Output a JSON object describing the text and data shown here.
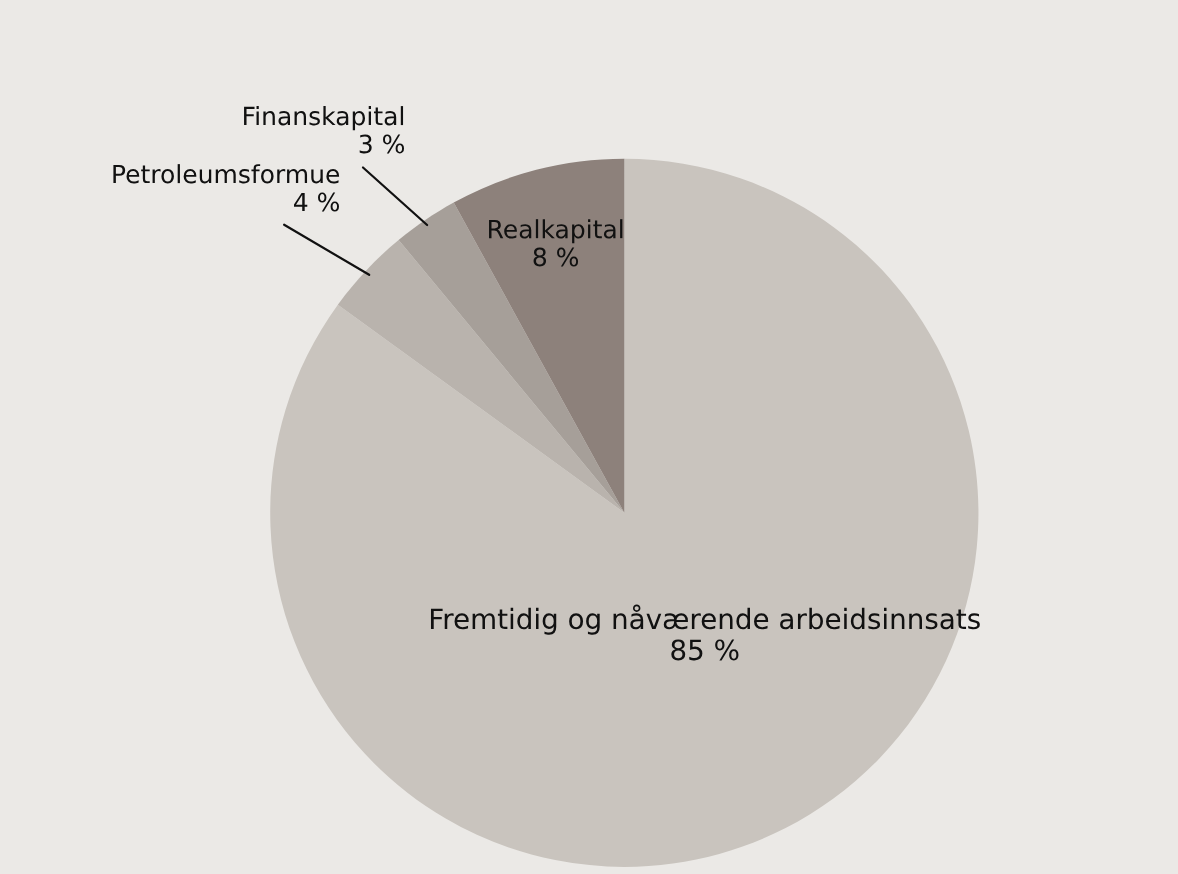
{
  "chart_data": {
    "type": "pie",
    "categories": [
      "Fremtidig og nåværende arbeidsinnsats",
      "Petroleumsformue",
      "Finanskapital",
      "Realkapital"
    ],
    "values": [
      85,
      4,
      3,
      8
    ],
    "value_labels": [
      "85 %",
      "4 %",
      "3 %",
      "8 %"
    ],
    "colors": [
      "#c9c4be",
      "#b9b3ad",
      "#a69f99",
      "#8d817b"
    ]
  }
}
